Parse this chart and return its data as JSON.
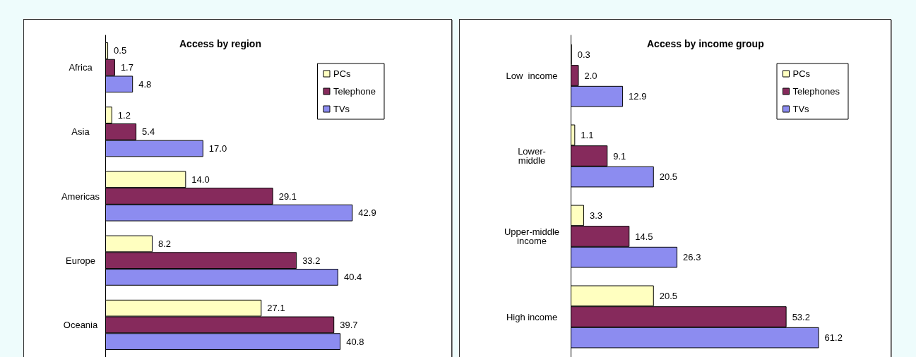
{
  "chart_data": [
    {
      "type": "bar",
      "orientation": "horizontal",
      "title": "Access by region",
      "categories": [
        "Africa",
        "Asia",
        "Americas",
        "Europe",
        "Oceania"
      ],
      "legend": "right",
      "series": [
        {
          "name": "PCs",
          "color": "#ffffc0",
          "values": [
            0.5,
            1.2,
            14.0,
            8.2,
            27.1
          ],
          "value_labels": [
            "0.5",
            "1.2",
            "14.0",
            "8.2",
            "27.1"
          ]
        },
        {
          "name": "Telephone",
          "color": "#862a5c",
          "values": [
            1.7,
            5.4,
            29.1,
            33.2,
            39.7
          ],
          "value_labels": [
            "1.7",
            "5.4",
            "29.1",
            "33.2",
            "39.7"
          ]
        },
        {
          "name": "TVs",
          "color": "#8c8cf0",
          "values": [
            4.8,
            17.0,
            42.9,
            40.4,
            40.8
          ],
          "value_labels": [
            "4.8",
            "17.0",
            "42.9",
            "40.4",
            "40.8"
          ]
        }
      ]
    },
    {
      "type": "bar",
      "orientation": "horizontal",
      "title": "Access by income group",
      "categories": [
        "Low  income",
        "Lower-\nmiddle",
        "Upper-middle\nincome",
        "High income"
      ],
      "legend": "right",
      "series": [
        {
          "name": "PCs",
          "color": "#ffffc0",
          "values": [
            0.3,
            1.1,
            3.3,
            20.5
          ],
          "value_labels": [
            "0.3",
            "1.1",
            "3.3",
            "20.5"
          ]
        },
        {
          "name": "Telephones",
          "color": "#862a5c",
          "values": [
            2.0,
            9.1,
            14.5,
            53.2
          ],
          "value_labels": [
            "2.0",
            "9.1",
            "14.5",
            "53.2"
          ]
        },
        {
          "name": "TVs",
          "color": "#8c8cf0",
          "values": [
            12.9,
            20.5,
            26.3,
            61.2
          ],
          "value_labels": [
            "12.9",
            "20.5",
            "26.3",
            "61.2"
          ]
        }
      ]
    }
  ]
}
